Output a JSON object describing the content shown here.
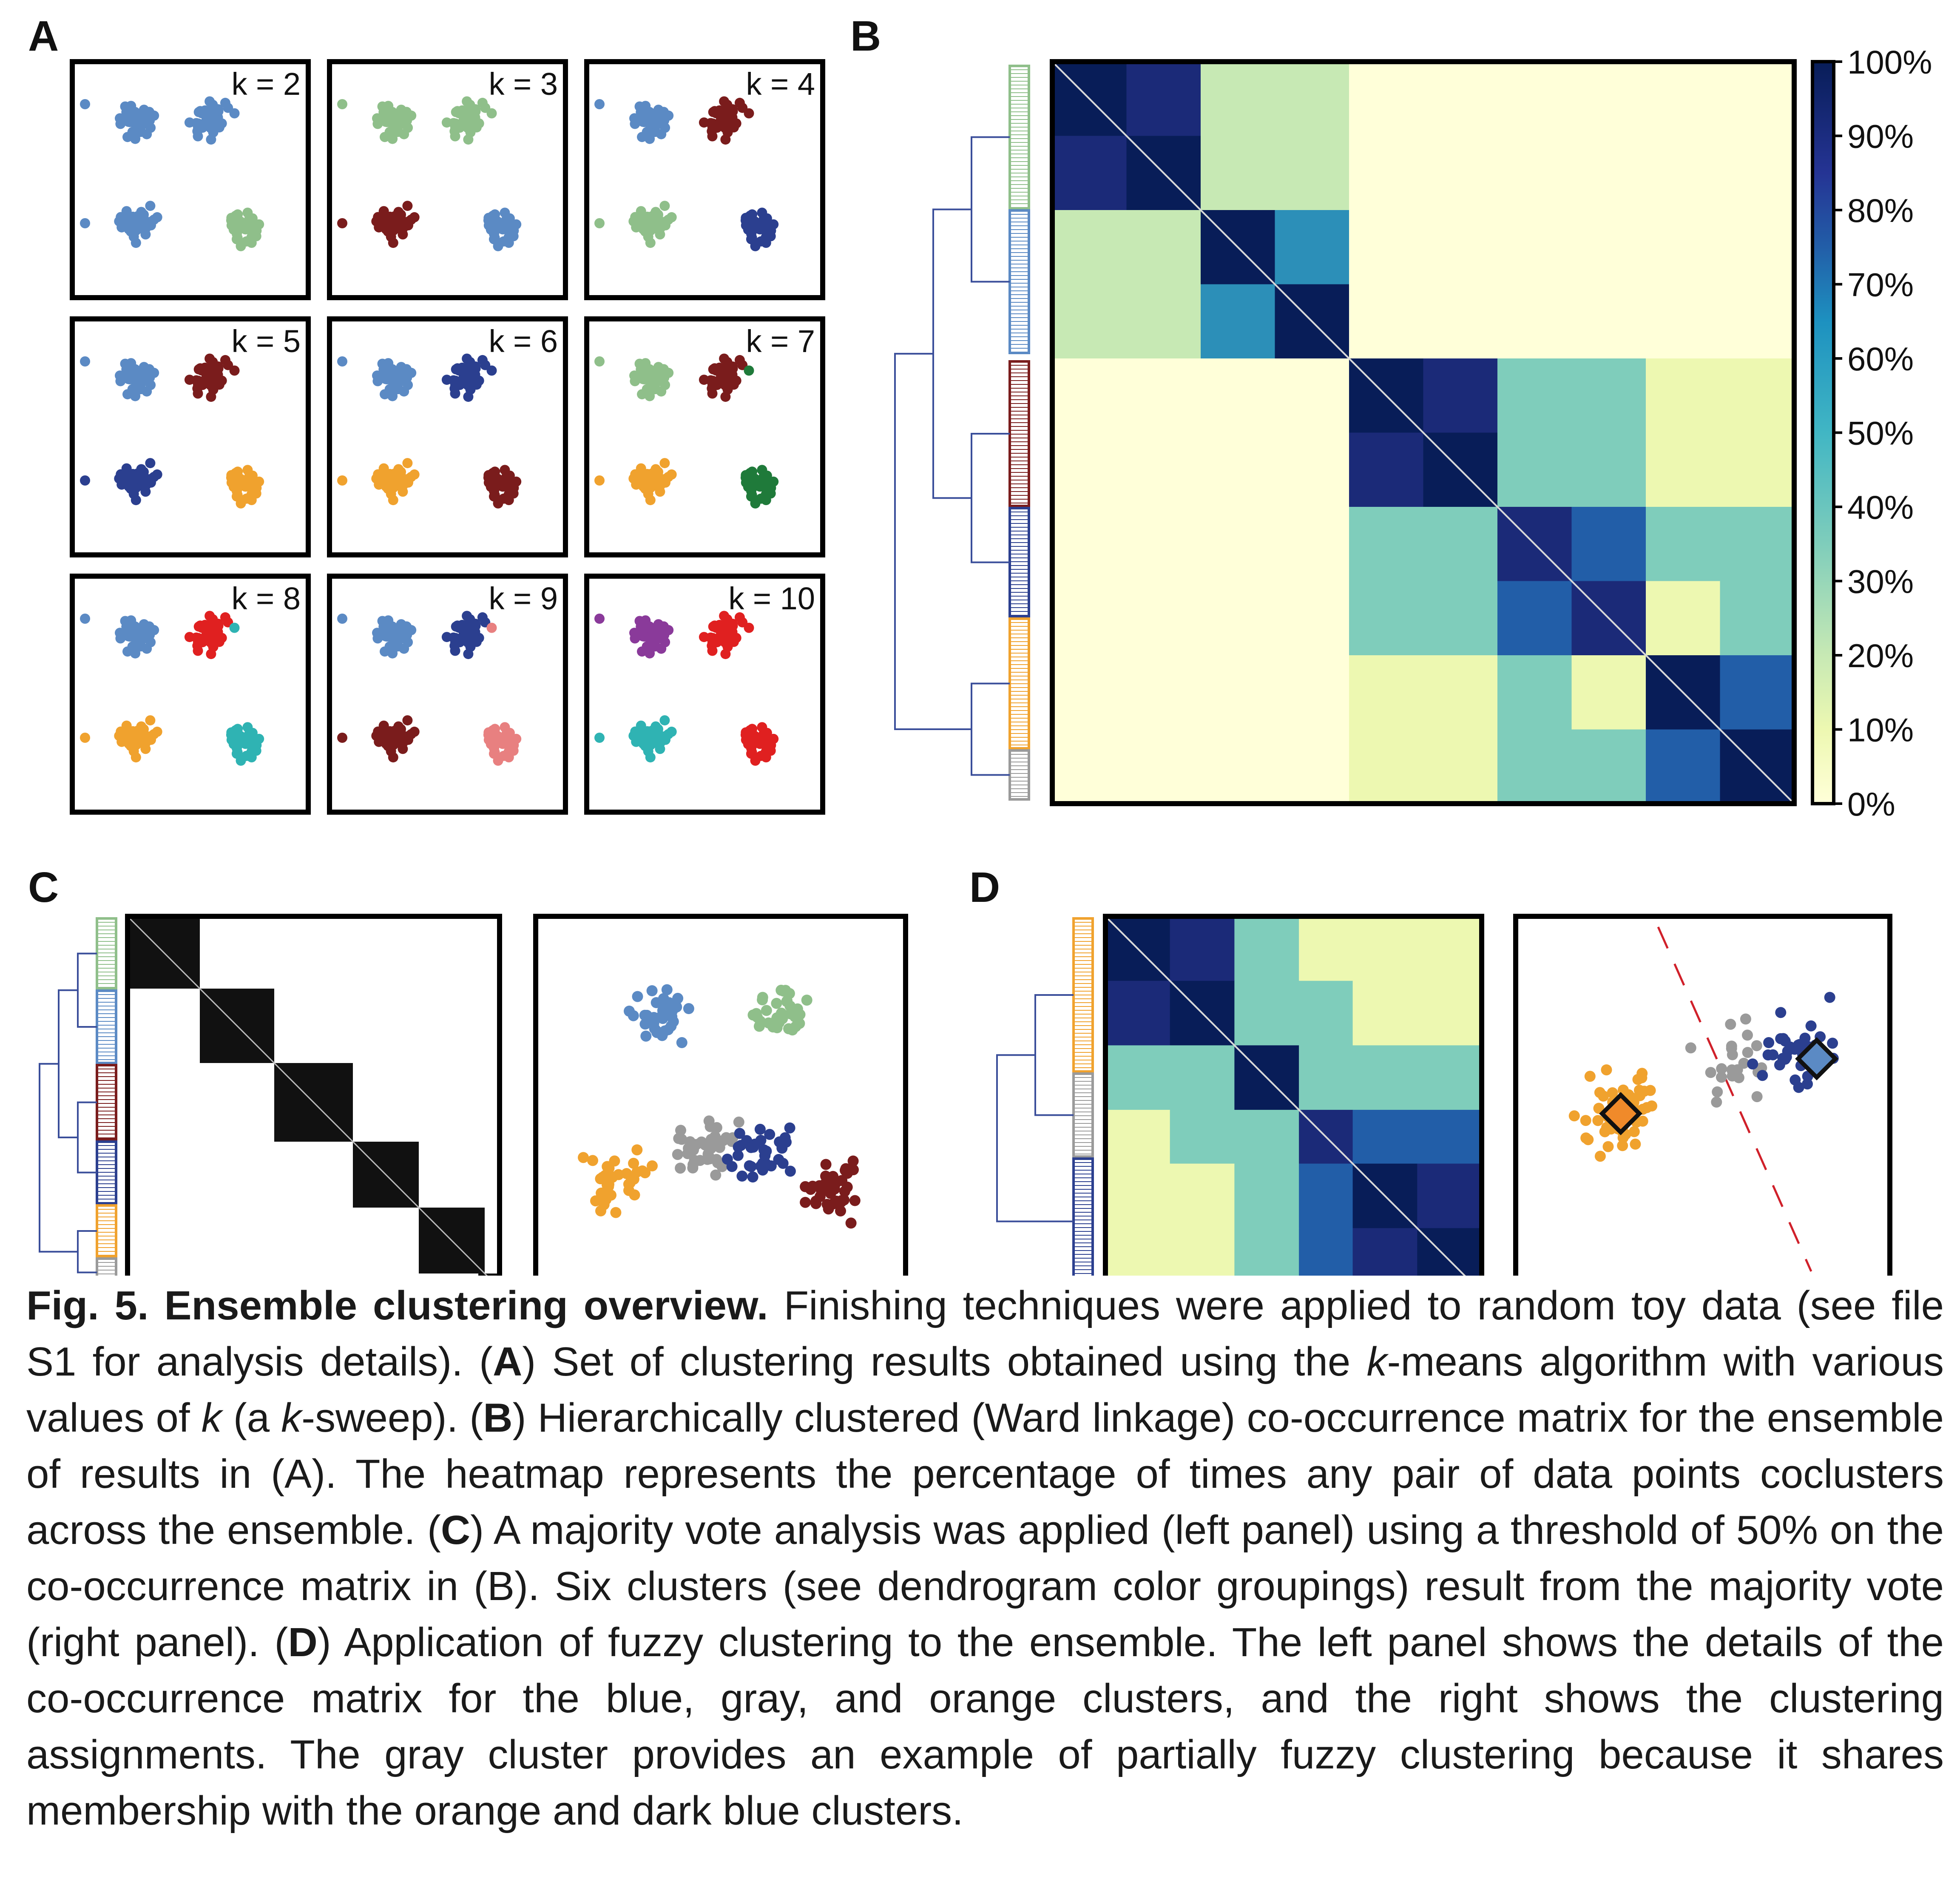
{
  "panels": {
    "A": {
      "label": "A",
      "k_labels": [
        "k = 2",
        "k = 3",
        "k = 4",
        "k = 5",
        "k = 6",
        "k = 7",
        "k = 8",
        "k = 9",
        "k = 10"
      ]
    },
    "B": {
      "label": "B",
      "colorbar_ticks": [
        "100%",
        "90%",
        "80%",
        "70%",
        "60%",
        "50%",
        "40%",
        "30%",
        "20%",
        "10%",
        "0%"
      ]
    },
    "C": {
      "label": "C"
    },
    "D": {
      "label": "D"
    }
  },
  "colors": {
    "light_blue": "#5b8ac4",
    "light_green": "#8fbf8a",
    "dark_red": "#7a1c1c",
    "dark_blue": "#2b3f8f",
    "orange": "#f0a22e",
    "pink": "#e88080",
    "dark_green": "#1f7a3a",
    "red": "#e02020",
    "purple": "#8a3a9a",
    "teal": "#2fb3b3",
    "gray": "#9a9a9a",
    "heat_0": "#ffffd9",
    "heat_20": "#c7e9b4",
    "heat_40": "#7fcdbb",
    "heat_60": "#1d91c0",
    "heat_80": "#253494",
    "heat_100": "#081d58"
  },
  "caption": {
    "fig_label": "Fig. 5. Ensemble clustering overview.",
    "s1": " Finishing techniques were applied to random toy data (see file S1 for analysis details). (",
    "b_A1": "A",
    "s2": ") Set of clustering results obtained using the ",
    "i_k1": "k",
    "s3": "-means algorithm with various values of ",
    "i_k2": "k",
    "s4": " (a ",
    "i_k3": "k",
    "s5": "-sweep). (",
    "b_B1": "B",
    "s6": ") Hierarchically clustered (Ward linkage) co-occurrence matrix for the ensemble of results in (A). The heatmap represents the percentage of times any pair of data points coclusters across the ensemble. (",
    "b_C1": "C",
    "s7": ") A majority vote analysis was applied (left panel) using a threshold of 50% on the co-occurrence matrix in (B). Six clusters (see dendrogram color groupings) result from the majority vote (right panel). (",
    "b_D1": "D",
    "s8": ") Application of fuzzy clustering to the ensemble. The left panel shows the details of the co-occurrence matrix for the blue, gray, and orange clusters, and the right shows the clustering assignments. The gray cluster provides an example of partially fuzzy clustering because it shares membership with the orange and dark blue clusters."
  }
}
